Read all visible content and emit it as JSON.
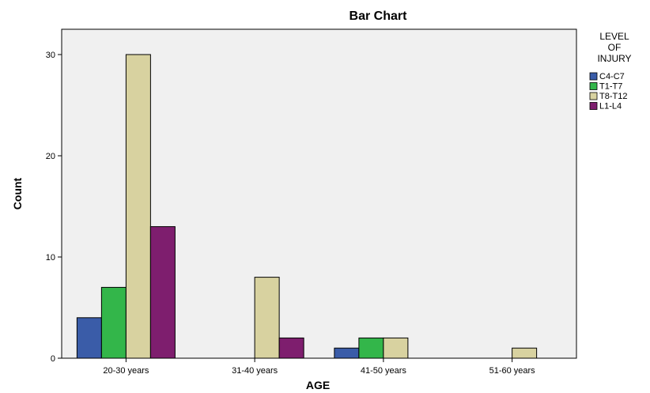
{
  "chart_data": {
    "type": "bar",
    "title": "Bar Chart",
    "xlabel": "AGE",
    "ylabel": "Count",
    "categories": [
      "20-30 years",
      "31-40 years",
      "41-50 years",
      "51-60 years"
    ],
    "ylim": [
      0,
      32.5
    ],
    "yticks": [
      0,
      10,
      20,
      30
    ],
    "grid": false,
    "legend_position": "right",
    "legend_title": [
      "LEVEL",
      "OF",
      "INJURY"
    ],
    "series": [
      {
        "name": "C4-C7",
        "color": "#3A5CA8",
        "values": [
          4,
          0,
          1,
          0
        ]
      },
      {
        "name": "T1-T7",
        "color": "#33B64A",
        "values": [
          7,
          0,
          2,
          0
        ]
      },
      {
        "name": "T8-T12",
        "color": "#D8D2A0",
        "values": [
          30,
          8,
          2,
          1
        ]
      },
      {
        "name": "L1-L4",
        "color": "#7E1E6E",
        "values": [
          13,
          2,
          0,
          0
        ]
      }
    ],
    "plot_background": "#F0F0F0"
  }
}
